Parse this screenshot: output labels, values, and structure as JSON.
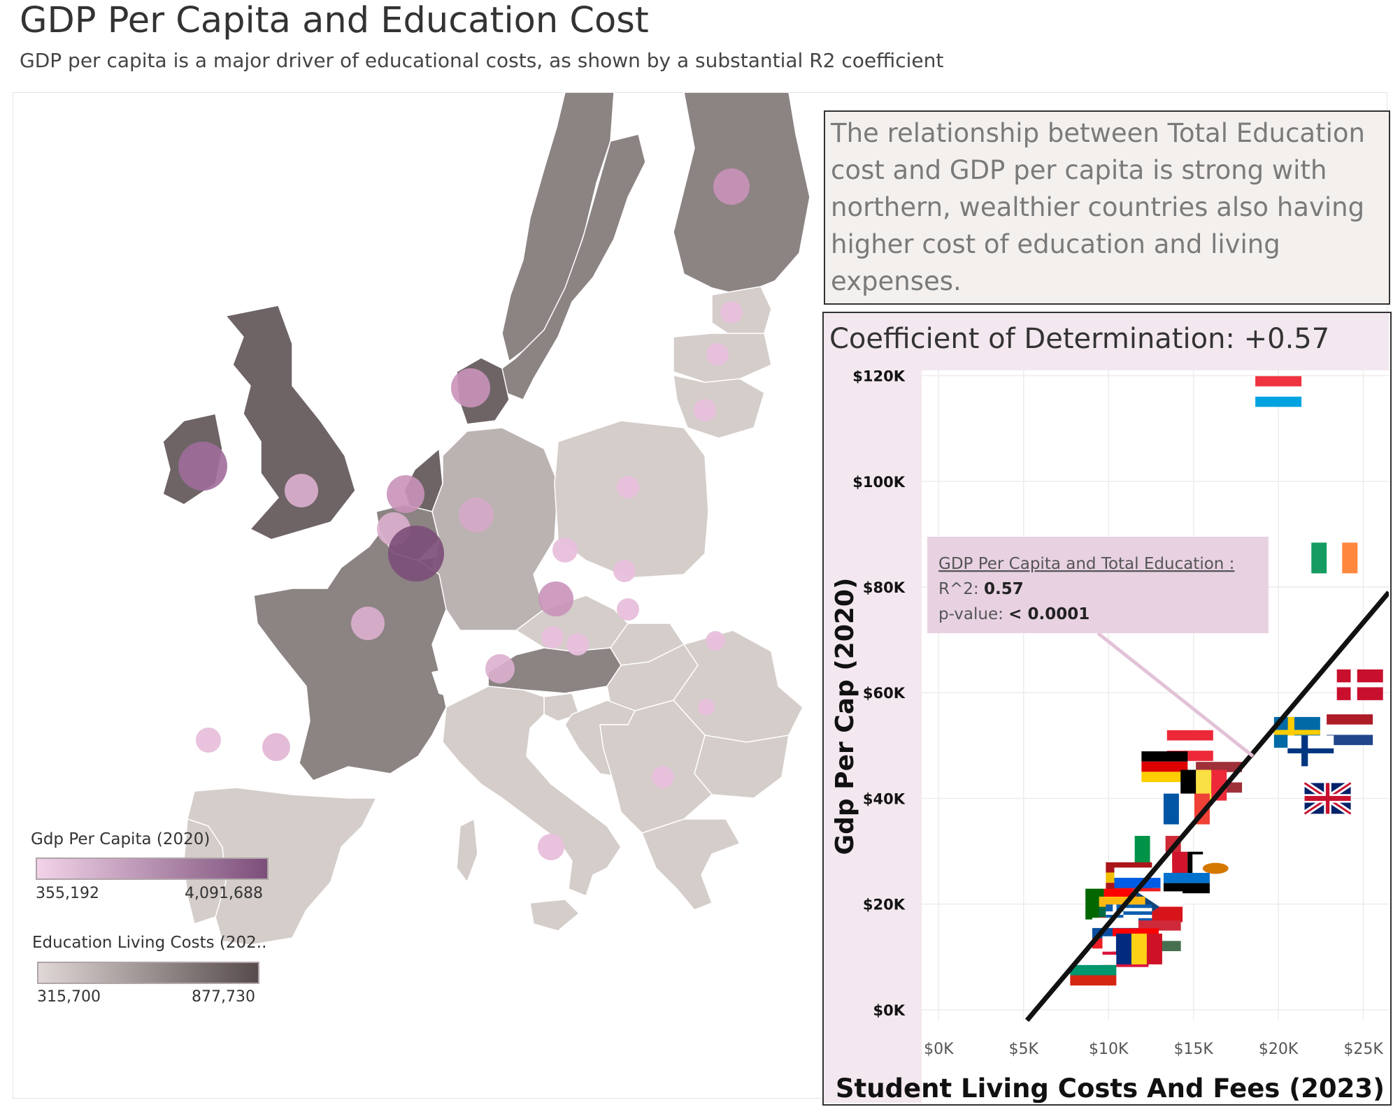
{
  "header": {
    "title": "GDP Per Capita and Education Cost",
    "subtitle": "GDP per capita is a major driver of educational costs, as shown by a substantial R2 coefficient"
  },
  "map": {
    "legend_gdp": {
      "title": "Gdp Per Capita (2020)",
      "min": "355,192",
      "max": "4,091,688",
      "color_min": "#f2d3e8",
      "color_max": "#7c4f7a"
    },
    "legend_cost": {
      "title": "Education Living Costs (202..",
      "min": "315,700",
      "max": "877,730",
      "color_min": "#e0d8d6",
      "color_max": "#574b4c"
    },
    "bubble_color": "#d9a2c8"
  },
  "note": {
    "text": "The relationship between Total Education cost and GDP per capita is strong with northern, wealthier countries also having higher cost of education and living expenses."
  },
  "chart_data": {
    "type": "scatter",
    "title": "Coefficient of Determination: +0.57",
    "xlabel": "Student Living Costs And Fees (2023)",
    "ylabel": "Gdp Per Cap (2020)",
    "xlim": [
      -1000,
      26500
    ],
    "ylim": [
      -2000,
      121000
    ],
    "x_ticks": [
      "$0K",
      "$5K",
      "$10K",
      "$15K",
      "$20K",
      "$25K"
    ],
    "y_ticks": [
      "$0K",
      "$20K",
      "$40K",
      "$60K",
      "$80K",
      "$100K",
      "$120K"
    ],
    "grid": true,
    "trend_line": {
      "from": [
        5200,
        -2000
      ],
      "to": [
        26500,
        79000
      ],
      "color": "#111111"
    },
    "tooltip": {
      "title": "GDP Per Capita and Total Education :",
      "r2_label": "R^2:",
      "r2_value": "0.57",
      "p_label": "p-value:",
      "p_value": "< 0.0001"
    },
    "points": [
      {
        "flag": "luxembourg",
        "x": 20000,
        "y": 117000
      },
      {
        "flag": "ireland",
        "x": 23300,
        "y": 85500
      },
      {
        "flag": "denmark",
        "x": 24800,
        "y": 61500
      },
      {
        "flag": "netherlands",
        "x": 24200,
        "y": 53000
      },
      {
        "flag": "sweden",
        "x": 21100,
        "y": 52500
      },
      {
        "flag": "finland",
        "x": 21900,
        "y": 49000
      },
      {
        "flag": "uk",
        "x": 22900,
        "y": 40000
      },
      {
        "flag": "austria",
        "x": 14800,
        "y": 50000
      },
      {
        "flag": "latvia",
        "x": 16500,
        "y": 44000
      },
      {
        "flag": "germany",
        "x": 13300,
        "y": 46000
      },
      {
        "flag": "belgium",
        "x": 15600,
        "y": 42500
      },
      {
        "flag": "france",
        "x": 14600,
        "y": 38000
      },
      {
        "flag": "italy",
        "x": 12900,
        "y": 30000
      },
      {
        "flag": "malta",
        "x": 14200,
        "y": 27000
      },
      {
        "flag": "cyprus",
        "x": 16300,
        "y": 26500
      },
      {
        "flag": "estonia",
        "x": 14600,
        "y": 23000
      },
      {
        "flag": "spain",
        "x": 11200,
        "y": 25000
      },
      {
        "flag": "slovenia",
        "x": 11700,
        "y": 24000
      },
      {
        "flag": "czechia",
        "x": 13000,
        "y": 19500
      },
      {
        "flag": "portugal",
        "x": 10000,
        "y": 20000
      },
      {
        "flag": "lithuania",
        "x": 10800,
        "y": 18500
      },
      {
        "flag": "greece",
        "x": 11200,
        "y": 17000
      },
      {
        "flag": "hungary",
        "x": 12900,
        "y": 14000
      },
      {
        "flag": "slovakia",
        "x": 10400,
        "y": 14500
      },
      {
        "flag": "croatia",
        "x": 11600,
        "y": 12500
      },
      {
        "flag": "poland",
        "x": 11000,
        "y": 11000
      },
      {
        "flag": "romania",
        "x": 11800,
        "y": 11500
      },
      {
        "flag": "bulgaria",
        "x": 9100,
        "y": 7500
      }
    ]
  }
}
